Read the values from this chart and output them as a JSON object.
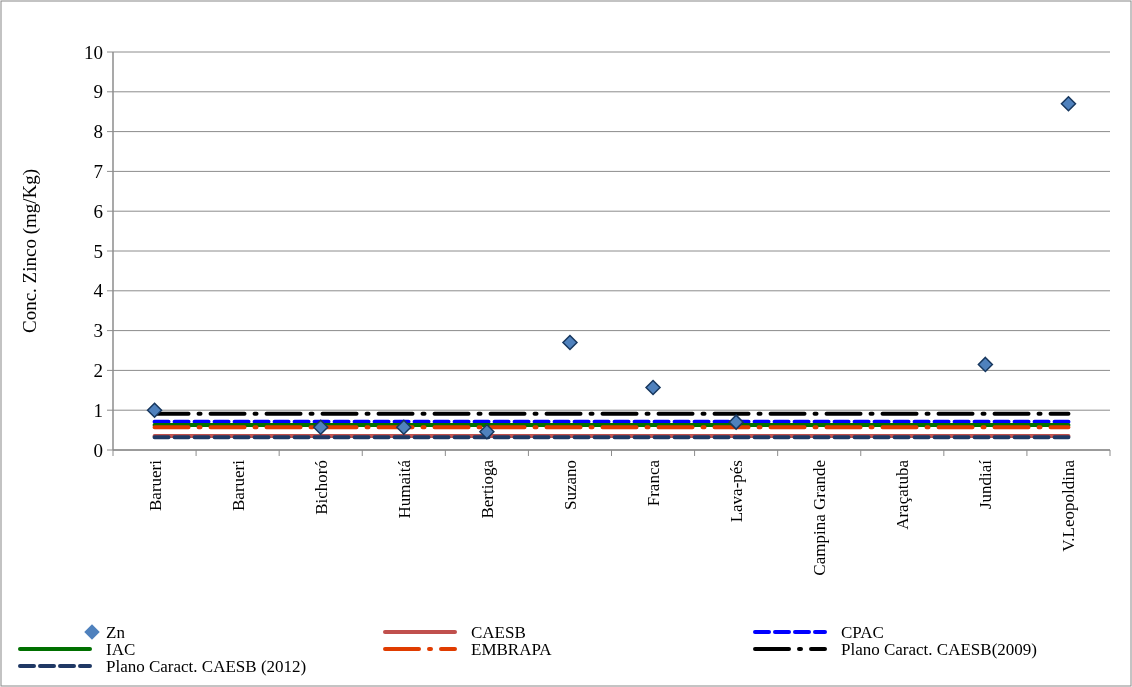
{
  "chart_data": {
    "type": "scatter",
    "ylabel": "Conc. Zinco (mg/Kg)",
    "categories": [
      "Barueri",
      "Barueri",
      "Bichoró",
      "Humaitá",
      "Bertioga",
      "Suzano",
      "Franca",
      "Lava-pés",
      "Campina Grande",
      "Araçatuba",
      "Jundiaí",
      "V.Leopoldina"
    ],
    "ylim": [
      0,
      10
    ],
    "yticks": [
      0,
      1,
      2,
      3,
      4,
      5,
      6,
      7,
      8,
      9,
      10
    ],
    "grid": "y",
    "legend": "bottom",
    "series": [
      {
        "name": "Zn",
        "marker": "diamond",
        "color": "#4f81bd",
        "values": [
          1.0,
          null,
          0.57,
          0.57,
          0.46,
          2.7,
          1.57,
          0.7,
          null,
          null,
          2.15,
          8.7
        ]
      },
      {
        "name": "CAESB",
        "type": "line",
        "line_style": "solid",
        "color": "#c0504d",
        "values": [
          0.35,
          0.35,
          0.35,
          0.35,
          0.35,
          0.35,
          0.35,
          0.35,
          0.35,
          0.35,
          0.35,
          0.35
        ]
      },
      {
        "name": "CPAC",
        "type": "line",
        "line_style": "dashed",
        "color": "#0000ff",
        "values": [
          0.71,
          0.71,
          0.71,
          0.71,
          0.71,
          0.71,
          0.71,
          0.71,
          0.71,
          0.71,
          0.71,
          0.71
        ]
      },
      {
        "name": "IAC",
        "type": "line",
        "line_style": "solid",
        "color": "#007000",
        "values": [
          0.63,
          0.63,
          0.63,
          0.63,
          0.63,
          0.63,
          0.63,
          0.63,
          0.63,
          0.63,
          0.63,
          0.63
        ]
      },
      {
        "name": "EMBRAPA",
        "type": "line",
        "line_style": "dashdot",
        "color": "#e03c00",
        "values": [
          0.57,
          0.57,
          0.57,
          0.57,
          0.57,
          0.57,
          0.57,
          0.57,
          0.57,
          0.57,
          0.57,
          0.57
        ]
      },
      {
        "name": "Plano Caract. CAESB(2009)",
        "type": "line",
        "line_style": "dashdot",
        "color": "#000000",
        "values": [
          0.91,
          0.91,
          0.91,
          0.91,
          0.91,
          0.91,
          0.91,
          0.91,
          0.91,
          0.91,
          0.91,
          0.91
        ]
      },
      {
        "name": "Plano Caract. CAESB (2012)",
        "type": "line",
        "line_style": "dashed",
        "color": "#1f3864",
        "values": [
          0.32,
          0.32,
          0.32,
          0.32,
          0.32,
          0.32,
          0.32,
          0.32,
          0.32,
          0.32,
          0.32,
          0.32
        ]
      }
    ]
  }
}
